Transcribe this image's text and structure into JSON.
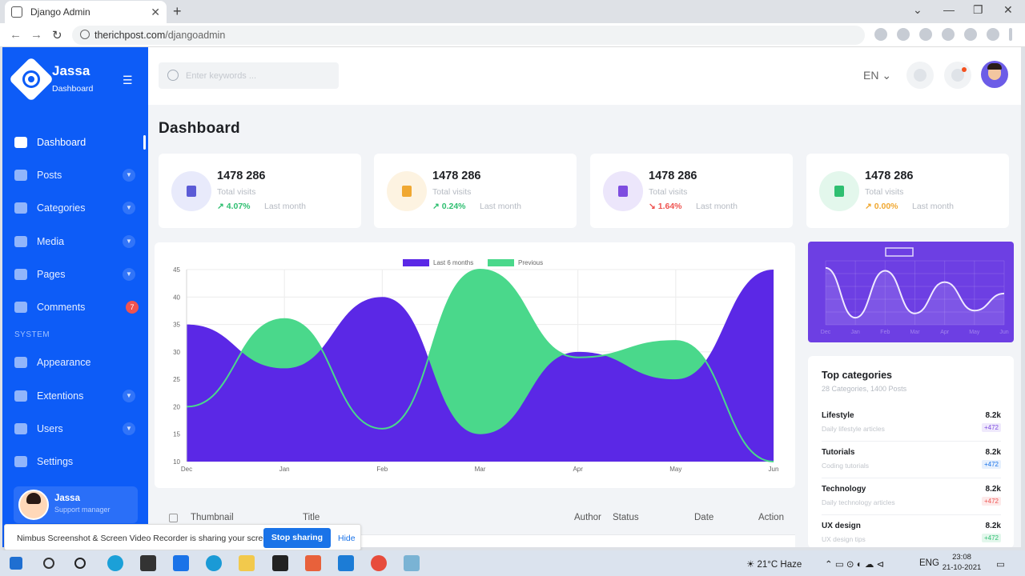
{
  "browser": {
    "tab_title": "Django Admin",
    "url_domain": "therichpost.com",
    "url_path": "/djangoadmin"
  },
  "sidebar": {
    "brand_name": "Jassa",
    "brand_sub": "Dashboard",
    "items": [
      {
        "label": "Dashboard",
        "icon": "home-icon",
        "active": true
      },
      {
        "label": "Posts",
        "icon": "posts-icon",
        "chevron": true
      },
      {
        "label": "Categories",
        "icon": "categories-icon",
        "chevron": true
      },
      {
        "label": "Media",
        "icon": "media-icon",
        "chevron": true
      },
      {
        "label": "Pages",
        "icon": "pages-icon",
        "chevron": true
      },
      {
        "label": "Comments",
        "icon": "comments-icon",
        "badge": "7"
      }
    ],
    "section_label": "SYSTEM",
    "system_items": [
      {
        "label": "Appearance",
        "icon": "brush-icon"
      },
      {
        "label": "Extentions",
        "icon": "extensions-icon",
        "chevron": true
      },
      {
        "label": "Users",
        "icon": "users-icon",
        "chevron": true
      },
      {
        "label": "Settings",
        "icon": "gear-icon"
      }
    ],
    "profile": {
      "name": "Jassa",
      "role": "Support manager"
    }
  },
  "topbar": {
    "search_placeholder": "Enter keywords ...",
    "language": "EN"
  },
  "page_title": "Dashboard",
  "stats": [
    {
      "value": "1478 286",
      "label": "Total visits",
      "change": "4.07%",
      "period": "Last month",
      "trend": "up",
      "color": "#2fbf71",
      "icon_bg": "#e8eafb",
      "icon_color": "#5b5bd6"
    },
    {
      "value": "1478 286",
      "label": "Total visits",
      "change": "0.24%",
      "period": "Last month",
      "trend": "up",
      "color": "#2fbf71",
      "icon_bg": "#fdf3e1",
      "icon_color": "#f0a832"
    },
    {
      "value": "1478 286",
      "label": "Total visits",
      "change": "1.64%",
      "period": "Last month",
      "trend": "down",
      "color": "#ef5350",
      "icon_bg": "#ece6fb",
      "icon_color": "#7e4de0"
    },
    {
      "value": "1478 286",
      "label": "Total visits",
      "change": "0.00%",
      "period": "Last month",
      "trend": "flat",
      "color": "#f0a832",
      "icon_bg": "#e3f7ec",
      "icon_color": "#2fbf71"
    }
  ],
  "chart_data": [
    {
      "type": "area",
      "categories": [
        "Dec",
        "Jan",
        "Feb",
        "Mar",
        "Apr",
        "May",
        "Jun"
      ],
      "series": [
        {
          "name": "Last 6 months",
          "color": "#5b28e6",
          "values": [
            35,
            27,
            40,
            15,
            30,
            25,
            45
          ]
        },
        {
          "name": "Previous",
          "color": "#4ad88b",
          "values": [
            20,
            36,
            16,
            45,
            29,
            32,
            10
          ]
        }
      ],
      "ylim": [
        10,
        45
      ],
      "yticks": [
        10,
        15,
        20,
        25,
        30,
        35,
        40,
        45
      ],
      "legend": "top-center",
      "grid": true
    },
    {
      "type": "line",
      "categories": [
        "Dec",
        "Jan",
        "Feb",
        "Mar",
        "Apr",
        "May",
        "Jun"
      ],
      "series": [
        {
          "values": [
            40,
            5,
            38,
            8,
            30,
            10,
            22
          ]
        }
      ],
      "legend": "top-center",
      "grid": true
    }
  ],
  "top_categories": {
    "title": "Top categories",
    "subtitle": "28 Categories, 1400 Posts",
    "items": [
      {
        "name": "Lifestyle",
        "desc": "Daily lifestyle articles",
        "value": "8.2k",
        "delta": "+472",
        "color": "#7e4de0",
        "bg": "#efe9fc"
      },
      {
        "name": "Tutorials",
        "desc": "Coding tutorials",
        "value": "8.2k",
        "delta": "+472",
        "color": "#1a73e8",
        "bg": "#e6f0fd"
      },
      {
        "name": "Technology",
        "desc": "Daily technology articles",
        "value": "8.2k",
        "delta": "+472",
        "color": "#ef5350",
        "bg": "#fdeaea"
      },
      {
        "name": "UX design",
        "desc": "UX design tips",
        "value": "8.2k",
        "delta": "+472",
        "color": "#2fbf71",
        "bg": "#e3f7ec"
      }
    ]
  },
  "table": {
    "headers": [
      "Thumbnail",
      "Title",
      "Author",
      "Status",
      "Date",
      "Action"
    ]
  },
  "share_bar": {
    "message": "Nimbus Screenshot & Screen Video Recorder is sharing your screen.",
    "stop_label": "Stop sharing",
    "hide_label": "Hide"
  },
  "taskbar": {
    "weather": "21°C  Haze",
    "lang": "ENG",
    "time": "23:08",
    "date": "21-10-2021"
  }
}
